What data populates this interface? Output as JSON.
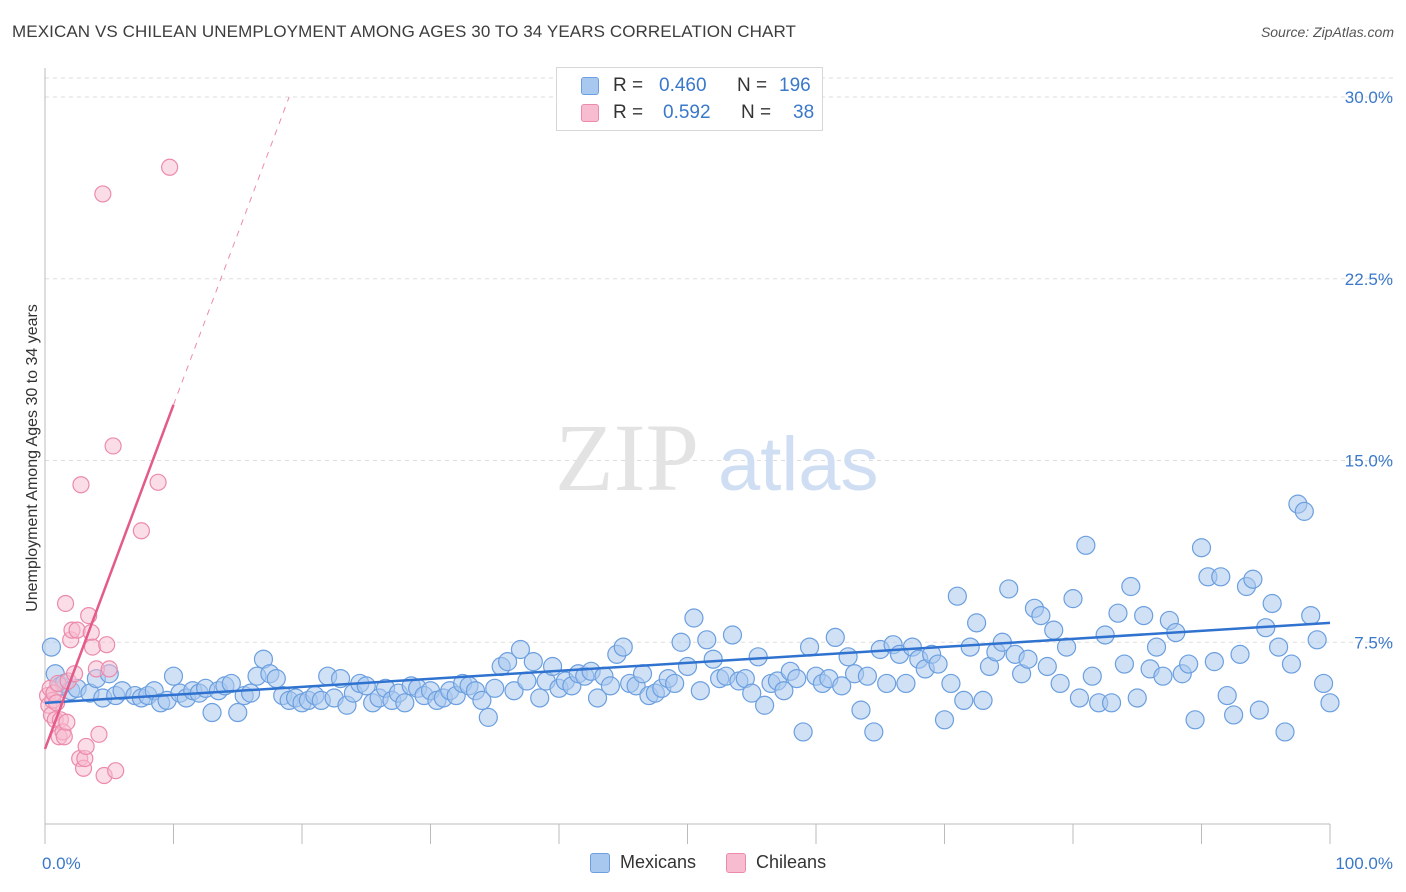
{
  "title": "MEXICAN VS CHILEAN UNEMPLOYMENT AMONG AGES 30 TO 34 YEARS CORRELATION CHART",
  "source": "Source: ZipAtlas.com",
  "watermark": {
    "zip": "ZIP",
    "atlas": "atlas"
  },
  "legend": {
    "rows": [
      {
        "r_label": "R =",
        "r_value": "0.460",
        "n_label": "N =",
        "n_value": "196"
      },
      {
        "r_label": "R =",
        "r_value": "0.592",
        "n_label": "N =",
        "n_value": "38"
      }
    ]
  },
  "bottom_legend": [
    "Mexicans",
    "Chileans"
  ],
  "colors": {
    "mexicans_fill": "#a9c8ef",
    "mexicans_stroke": "#6b9fdf",
    "mexicans_line": "#2f72cf",
    "chileans_fill": "#f7bcd0",
    "chileans_stroke": "#ec8aab",
    "chileans_line": "#e45a88",
    "tick_label": "#3a78c9",
    "grid": "#dddddd"
  },
  "chart_data": {
    "type": "scatter",
    "title": "MEXICAN VS CHILEAN UNEMPLOYMENT AMONG AGES 30 TO 34 YEARS CORRELATION CHART",
    "xlabel": "",
    "ylabel": "Unemployment Among Ages 30 to 34 years",
    "xlim": [
      0,
      100
    ],
    "ylim": [
      0,
      30
    ],
    "x_tick_labels": [
      "0.0%",
      "100.0%"
    ],
    "y_ticks": [
      7.5,
      15.0,
      22.5,
      30.0
    ],
    "y_tick_labels": [
      "7.5%",
      "15.0%",
      "22.5%",
      "30.0%"
    ],
    "grid": true,
    "legend_position": "top-center",
    "series": [
      {
        "name": "Mexicans",
        "r": 0.46,
        "n": 196,
        "trend": {
          "x": [
            0,
            100
          ],
          "y": [
            5.0,
            8.3
          ]
        },
        "points": [
          [
            0.5,
            7.3
          ],
          [
            0.8,
            6.2
          ],
          [
            1.2,
            5.7
          ],
          [
            1.5,
            5.8
          ],
          [
            2,
            5.5
          ],
          [
            2.5,
            5.6
          ],
          [
            3.5,
            5.4
          ],
          [
            4,
            6.0
          ],
          [
            4.5,
            5.2
          ],
          [
            5,
            6.2
          ],
          [
            5.5,
            5.3
          ],
          [
            6,
            5.5
          ],
          [
            7,
            5.3
          ],
          [
            7.5,
            5.2
          ],
          [
            8,
            5.3
          ],
          [
            8.5,
            5.5
          ],
          [
            9,
            5.0
          ],
          [
            9.5,
            5.1
          ],
          [
            10,
            6.1
          ],
          [
            10.5,
            5.4
          ],
          [
            11,
            5.2
          ],
          [
            11.5,
            5.5
          ],
          [
            12,
            5.4
          ],
          [
            12.5,
            5.6
          ],
          [
            13,
            4.6
          ],
          [
            13.5,
            5.5
          ],
          [
            14,
            5.7
          ],
          [
            14.5,
            5.8
          ],
          [
            15,
            4.6
          ],
          [
            15.5,
            5.3
          ],
          [
            16,
            5.4
          ],
          [
            16.5,
            6.1
          ],
          [
            17,
            6.8
          ],
          [
            17.5,
            6.2
          ],
          [
            18,
            6.0
          ],
          [
            18.5,
            5.3
          ],
          [
            19,
            5.1
          ],
          [
            19.5,
            5.2
          ],
          [
            20,
            5.0
          ],
          [
            20.5,
            5.1
          ],
          [
            21,
            5.3
          ],
          [
            21.5,
            5.1
          ],
          [
            22,
            6.1
          ],
          [
            22.5,
            5.2
          ],
          [
            23,
            6.0
          ],
          [
            23.5,
            4.9
          ],
          [
            24,
            5.4
          ],
          [
            24.5,
            5.8
          ],
          [
            25,
            5.7
          ],
          [
            25.5,
            5.0
          ],
          [
            26,
            5.2
          ],
          [
            26.5,
            5.6
          ],
          [
            27,
            5.1
          ],
          [
            27.5,
            5.4
          ],
          [
            28,
            5.0
          ],
          [
            28.5,
            5.7
          ],
          [
            29,
            5.6
          ],
          [
            29.5,
            5.3
          ],
          [
            30,
            5.5
          ],
          [
            30.5,
            5.1
          ],
          [
            31,
            5.2
          ],
          [
            31.5,
            5.5
          ],
          [
            32,
            5.3
          ],
          [
            32.5,
            5.8
          ],
          [
            33,
            5.7
          ],
          [
            33.5,
            5.5
          ],
          [
            34,
            5.1
          ],
          [
            34.5,
            4.4
          ],
          [
            35,
            5.6
          ],
          [
            35.5,
            6.5
          ],
          [
            36,
            6.7
          ],
          [
            36.5,
            5.5
          ],
          [
            37,
            7.2
          ],
          [
            37.5,
            5.9
          ],
          [
            38,
            6.7
          ],
          [
            38.5,
            5.2
          ],
          [
            39,
            5.9
          ],
          [
            39.5,
            6.5
          ],
          [
            40,
            5.6
          ],
          [
            40.5,
            5.9
          ],
          [
            41,
            5.7
          ],
          [
            41.5,
            6.2
          ],
          [
            42,
            6.1
          ],
          [
            42.5,
            6.3
          ],
          [
            43,
            5.2
          ],
          [
            43.5,
            6.1
          ],
          [
            44,
            5.7
          ],
          [
            44.5,
            7.0
          ],
          [
            45,
            7.3
          ],
          [
            45.5,
            5.8
          ],
          [
            46,
            5.7
          ],
          [
            46.5,
            6.2
          ],
          [
            47,
            5.3
          ],
          [
            47.5,
            5.4
          ],
          [
            48,
            5.6
          ],
          [
            48.5,
            6.0
          ],
          [
            49,
            5.8
          ],
          [
            49.5,
            7.5
          ],
          [
            50,
            6.5
          ],
          [
            50.5,
            8.5
          ],
          [
            51,
            5.5
          ],
          [
            51.5,
            7.6
          ],
          [
            52,
            6.8
          ],
          [
            52.5,
            6.0
          ],
          [
            53,
            6.1
          ],
          [
            53.5,
            7.8
          ],
          [
            54,
            5.9
          ],
          [
            54.5,
            6.0
          ],
          [
            55,
            5.4
          ],
          [
            55.5,
            6.9
          ],
          [
            56,
            4.9
          ],
          [
            56.5,
            5.8
          ],
          [
            57,
            5.9
          ],
          [
            57.5,
            5.5
          ],
          [
            58,
            6.3
          ],
          [
            58.5,
            6.0
          ],
          [
            59,
            3.8
          ],
          [
            59.5,
            7.3
          ],
          [
            60,
            6.1
          ],
          [
            60.5,
            5.8
          ],
          [
            61,
            6.0
          ],
          [
            61.5,
            7.7
          ],
          [
            62,
            5.7
          ],
          [
            62.5,
            6.9
          ],
          [
            63,
            6.2
          ],
          [
            63.5,
            4.7
          ],
          [
            64,
            6.1
          ],
          [
            64.5,
            3.8
          ],
          [
            65,
            7.2
          ],
          [
            65.5,
            5.8
          ],
          [
            66,
            7.4
          ],
          [
            66.5,
            7.0
          ],
          [
            67,
            5.8
          ],
          [
            67.5,
            7.3
          ],
          [
            68,
            6.8
          ],
          [
            68.5,
            6.4
          ],
          [
            69,
            7.0
          ],
          [
            69.5,
            6.6
          ],
          [
            70,
            4.3
          ],
          [
            70.5,
            5.8
          ],
          [
            71,
            9.4
          ],
          [
            71.5,
            5.1
          ],
          [
            72,
            7.3
          ],
          [
            72.5,
            8.3
          ],
          [
            73,
            5.1
          ],
          [
            73.5,
            6.5
          ],
          [
            74,
            7.1
          ],
          [
            74.5,
            7.5
          ],
          [
            75,
            9.7
          ],
          [
            75.5,
            7.0
          ],
          [
            76,
            6.2
          ],
          [
            76.5,
            6.8
          ],
          [
            77,
            8.9
          ],
          [
            77.5,
            8.6
          ],
          [
            78,
            6.5
          ],
          [
            78.5,
            8.0
          ],
          [
            79,
            5.8
          ],
          [
            79.5,
            7.3
          ],
          [
            80,
            9.3
          ],
          [
            80.5,
            5.2
          ],
          [
            81,
            11.5
          ],
          [
            81.5,
            6.1
          ],
          [
            82,
            5.0
          ],
          [
            82.5,
            7.8
          ],
          [
            83,
            5.0
          ],
          [
            83.5,
            8.7
          ],
          [
            84,
            6.6
          ],
          [
            84.5,
            9.8
          ],
          [
            85,
            5.2
          ],
          [
            85.5,
            8.6
          ],
          [
            86,
            6.4
          ],
          [
            86.5,
            7.3
          ],
          [
            87,
            6.1
          ],
          [
            87.5,
            8.4
          ],
          [
            88,
            7.9
          ],
          [
            88.5,
            6.2
          ],
          [
            89,
            6.6
          ],
          [
            89.5,
            4.3
          ],
          [
            90,
            11.4
          ],
          [
            90.5,
            10.2
          ],
          [
            91,
            6.7
          ],
          [
            91.5,
            10.2
          ],
          [
            92,
            5.3
          ],
          [
            92.5,
            4.5
          ],
          [
            93,
            7.0
          ],
          [
            93.5,
            9.8
          ],
          [
            94,
            10.1
          ],
          [
            94.5,
            4.7
          ],
          [
            95,
            8.1
          ],
          [
            95.5,
            9.1
          ],
          [
            96,
            7.3
          ],
          [
            96.5,
            3.8
          ],
          [
            97,
            6.6
          ],
          [
            97.5,
            13.2
          ],
          [
            98,
            12.9
          ],
          [
            98.5,
            8.6
          ],
          [
            99,
            7.6
          ],
          [
            99.5,
            5.8
          ],
          [
            100,
            5.0
          ]
        ]
      },
      {
        "name": "Chileans",
        "r": 0.592,
        "n": 38,
        "trend": {
          "x": [
            0,
            10
          ],
          "y": [
            3.1,
            17.3
          ]
        },
        "trend_dashed": {
          "x": [
            10,
            19
          ],
          "y": [
            17.3,
            30.0
          ]
        },
        "points": [
          [
            0.2,
            5.3
          ],
          [
            0.3,
            4.9
          ],
          [
            0.4,
            5.6
          ],
          [
            0.5,
            4.5
          ],
          [
            0.6,
            5.1
          ],
          [
            0.7,
            5.4
          ],
          [
            0.8,
            4.3
          ],
          [
            0.9,
            5.0
          ],
          [
            1.0,
            5.8
          ],
          [
            1.1,
            3.6
          ],
          [
            1.2,
            4.3
          ],
          [
            1.4,
            3.8
          ],
          [
            1.5,
            3.6
          ],
          [
            1.6,
            9.1
          ],
          [
            1.7,
            4.2
          ],
          [
            1.8,
            5.9
          ],
          [
            2.0,
            7.6
          ],
          [
            2.1,
            8.0
          ],
          [
            2.3,
            6.2
          ],
          [
            2.5,
            8.0
          ],
          [
            2.7,
            2.7
          ],
          [
            2.8,
            14.0
          ],
          [
            3.0,
            2.3
          ],
          [
            3.1,
            2.7
          ],
          [
            3.2,
            3.2
          ],
          [
            3.4,
            8.6
          ],
          [
            3.6,
            7.9
          ],
          [
            3.7,
            7.3
          ],
          [
            4.0,
            6.4
          ],
          [
            4.2,
            3.7
          ],
          [
            4.5,
            26.0
          ],
          [
            4.6,
            2.0
          ],
          [
            4.8,
            7.4
          ],
          [
            5.0,
            6.4
          ],
          [
            5.3,
            15.6
          ],
          [
            5.5,
            2.2
          ],
          [
            7.5,
            12.1
          ],
          [
            8.8,
            14.1
          ],
          [
            9.7,
            27.1
          ]
        ]
      }
    ]
  }
}
